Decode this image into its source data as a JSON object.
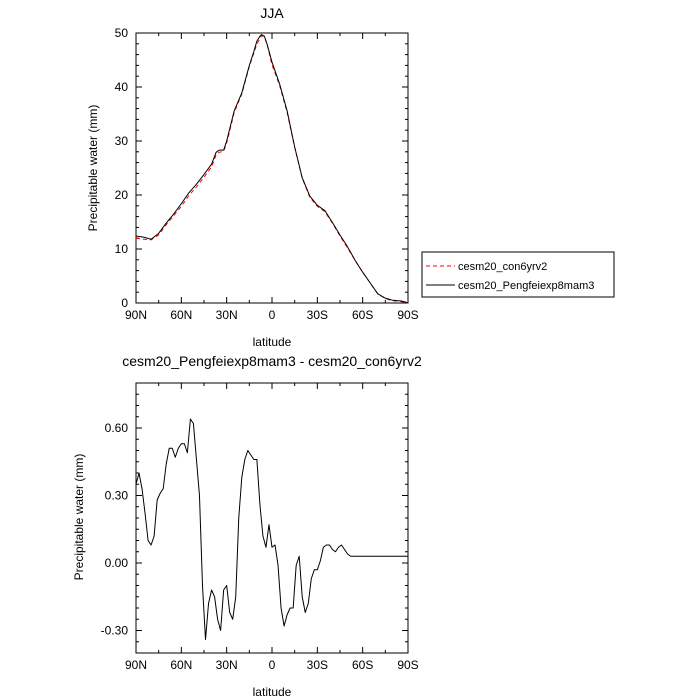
{
  "chart_data": [
    {
      "type": "line",
      "title": "JJA",
      "xlabel": "latitude",
      "ylabel": "Precipitable water (mm)",
      "xlim": [
        90,
        -90
      ],
      "ylim": [
        0,
        50
      ],
      "x_ticks": [
        {
          "value": 90,
          "label": "90N"
        },
        {
          "value": 60,
          "label": "60N"
        },
        {
          "value": 30,
          "label": "30N"
        },
        {
          "value": 0,
          "label": "0"
        },
        {
          "value": -30,
          "label": "30S"
        },
        {
          "value": -60,
          "label": "60S"
        },
        {
          "value": -90,
          "label": "90S"
        }
      ],
      "y_ticks": [
        {
          "value": 0,
          "label": "0"
        },
        {
          "value": 10,
          "label": "10"
        },
        {
          "value": 20,
          "label": "20"
        },
        {
          "value": 30,
          "label": "30"
        },
        {
          "value": 40,
          "label": "40"
        },
        {
          "value": 50,
          "label": "50"
        }
      ],
      "legend_position": "right",
      "series": [
        {
          "name": "cesm20_con6yrv2",
          "color": "#ff0000",
          "dash": "dashed",
          "x": [
            90,
            85,
            80,
            75,
            70,
            65,
            60,
            55,
            50,
            45,
            40,
            37,
            35,
            32,
            30,
            25,
            20,
            15,
            12,
            10,
            8,
            7,
            5,
            3,
            0,
            -5,
            -10,
            -15,
            -20,
            -25,
            -30,
            -35,
            -40,
            -45,
            -50,
            -55,
            -60,
            -65,
            -70,
            -75,
            -80,
            -85,
            -88,
            -90
          ],
          "y": [
            12,
            11.8,
            11.7,
            12.6,
            14.5,
            16.2,
            17.9,
            19.9,
            21.5,
            23.3,
            25.2,
            27.4,
            27.9,
            28.1,
            29.6,
            35.3,
            38.7,
            43.8,
            46.3,
            48,
            48.9,
            49.5,
            49.3,
            47.6,
            44.1,
            40.3,
            35.3,
            28.8,
            23.1,
            19.6,
            17.9,
            16.9,
            14.8,
            12.4,
            10.2,
            7.9,
            5.7,
            3.7,
            1.7,
            0.8,
            0.4,
            0.3,
            0.1,
            0
          ]
        },
        {
          "name": "cesm20_Pengfeiexp8mam3",
          "color": "#000000",
          "dash": "solid",
          "x": [
            90,
            85,
            80,
            75,
            70,
            65,
            60,
            55,
            50,
            45,
            40,
            37,
            35,
            32,
            30,
            25,
            20,
            15,
            12,
            10,
            8,
            7,
            5,
            3,
            0,
            -5,
            -10,
            -15,
            -20,
            -25,
            -30,
            -35,
            -40,
            -45,
            -50,
            -55,
            -60,
            -65,
            -70,
            -75,
            -80,
            -85,
            -88,
            -90
          ],
          "y": [
            12.4,
            12.2,
            11.8,
            12.9,
            14.8,
            16.5,
            18.4,
            20.4,
            22,
            23.8,
            25.7,
            27.9,
            28.3,
            28.3,
            30,
            35.6,
            38.9,
            44,
            46.6,
            48.5,
            49.4,
            49.7,
            49.4,
            47.7,
            44.6,
            40.6,
            35.6,
            28.9,
            23.2,
            19.8,
            18.1,
            17.1,
            14.9,
            12.6,
            10.4,
            7.9,
            5.7,
            3.7,
            1.7,
            0.9,
            0.5,
            0.4,
            0.2,
            0
          ]
        }
      ]
    },
    {
      "type": "line",
      "title": "cesm20_Pengfeiexp8mam3 - cesm20_con6yrv2",
      "xlabel": "latitude",
      "ylabel": "Precipitable water (mm)",
      "xlim": [
        90,
        -90
      ],
      "ylim": [
        -0.4,
        0.8
      ],
      "x_ticks": [
        {
          "value": 90,
          "label": "90N"
        },
        {
          "value": 60,
          "label": "60N"
        },
        {
          "value": 30,
          "label": "30N"
        },
        {
          "value": 0,
          "label": "0"
        },
        {
          "value": -30,
          "label": "30S"
        },
        {
          "value": -60,
          "label": "60S"
        },
        {
          "value": -90,
          "label": "90S"
        }
      ],
      "y_ticks": [
        {
          "value": -0.3,
          "label": "-0.30"
        },
        {
          "value": 0,
          "label": "0.00"
        },
        {
          "value": 0.3,
          "label": "0.30"
        },
        {
          "value": 0.6,
          "label": "0.60"
        }
      ],
      "series": [
        {
          "name": "cesm20_Pengfeiexp8mam3 - cesm20_con6yrv2",
          "color": "#000000",
          "dash": "solid",
          "x": [
            90,
            88,
            86,
            84,
            82,
            80,
            78,
            76,
            74,
            72,
            70,
            68,
            66,
            64,
            62,
            60,
            58,
            56,
            54,
            52,
            50,
            48,
            46,
            44,
            42,
            40,
            38,
            36,
            34,
            32,
            30,
            28,
            26,
            24,
            22,
            20,
            18,
            16,
            14,
            12,
            10,
            8,
            6,
            4,
            2,
            0,
            -2,
            -4,
            -6,
            -8,
            -10,
            -12,
            -14,
            -16,
            -18,
            -20,
            -22,
            -24,
            -26,
            -28,
            -30,
            -32,
            -34,
            -36,
            -38,
            -40,
            -42,
            -44,
            -46,
            -48,
            -50,
            -52,
            -54,
            -56,
            -58,
            -60,
            -62,
            -64,
            -66,
            -68,
            -70,
            -72,
            -74,
            -76,
            -78,
            -80,
            -82,
            -84,
            -86,
            -88,
            -90
          ],
          "y": [
            0.35,
            0.4,
            0.33,
            0.22,
            0.1,
            0.08,
            0.12,
            0.28,
            0.31,
            0.33,
            0.44,
            0.51,
            0.51,
            0.47,
            0.51,
            0.53,
            0.53,
            0.49,
            0.64,
            0.62,
            0.46,
            0.3,
            -0.1,
            -0.34,
            -0.18,
            -0.12,
            -0.15,
            -0.25,
            -0.3,
            -0.12,
            -0.1,
            -0.22,
            -0.25,
            -0.15,
            0.2,
            0.38,
            0.46,
            0.5,
            0.48,
            0.46,
            0.46,
            0.26,
            0.12,
            0.07,
            0.17,
            0.07,
            0.08,
            -0.01,
            -0.2,
            -0.28,
            -0.23,
            -0.2,
            -0.2,
            -0.01,
            0.03,
            -0.15,
            -0.22,
            -0.18,
            -0.07,
            -0.03,
            -0.03,
            0.01,
            0.07,
            0.08,
            0.08,
            0.06,
            0.05,
            0.07,
            0.08,
            0.06,
            0.04,
            0.03,
            0.03,
            0.03,
            0.03,
            0.03,
            0.03,
            0.03,
            0.03,
            0.03,
            0.03,
            0.03,
            0.03,
            0.03,
            0.03,
            0.03,
            0.03,
            0.03,
            0.03,
            0.03,
            0.03
          ]
        }
      ]
    }
  ]
}
